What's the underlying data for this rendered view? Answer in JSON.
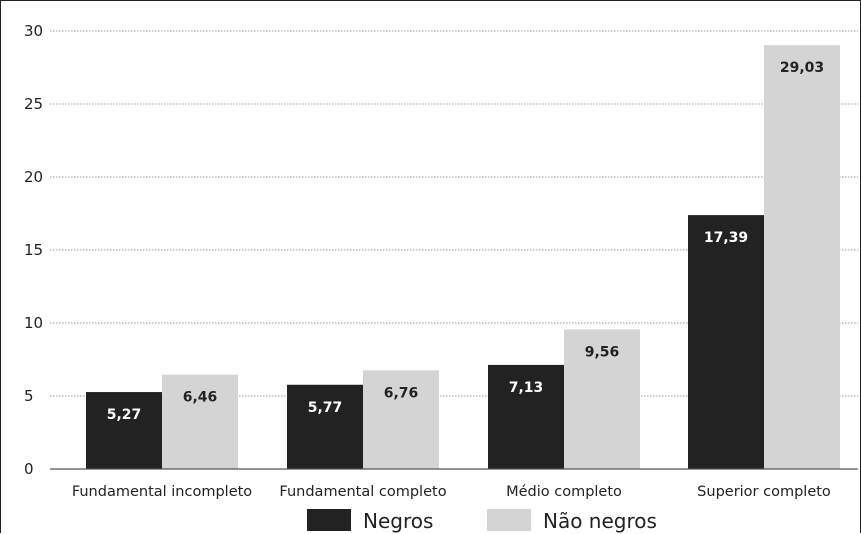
{
  "chart_data": {
    "type": "bar",
    "categories": [
      "Fundamental incompleto",
      "Fundamental completo",
      "Médio completo",
      "Superior completo"
    ],
    "series": [
      {
        "name": "Negros",
        "values": [
          5.27,
          5.77,
          7.13,
          17.39
        ],
        "labels": [
          "5,27",
          "5,77",
          "7,13",
          "17,39"
        ],
        "color": "#222222",
        "label_color": "#ffffff"
      },
      {
        "name": "Não negros",
        "values": [
          6.46,
          6.76,
          9.56,
          29.03
        ],
        "labels": [
          "6,46",
          "6,76",
          "9,56",
          "29,03"
        ],
        "color": "#d4d4d4",
        "label_color": "#222222"
      }
    ],
    "yticks": [
      "0",
      "5",
      "10",
      "15",
      "20",
      "25",
      "30"
    ],
    "ylim": [
      0,
      30
    ],
    "grid": true,
    "legend_position": "bottom"
  }
}
